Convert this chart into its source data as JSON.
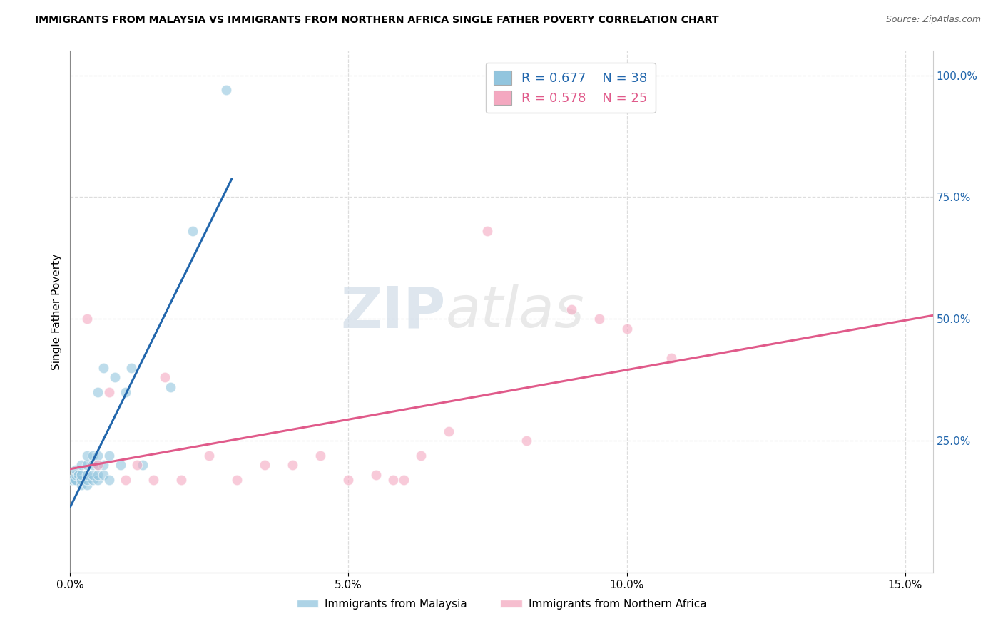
{
  "title": "IMMIGRANTS FROM MALAYSIA VS IMMIGRANTS FROM NORTHERN AFRICA SINGLE FATHER POVERTY CORRELATION CHART",
  "source": "Source: ZipAtlas.com",
  "ylabel": "Single Father Poverty",
  "legend_label_1": "Immigrants from Malaysia",
  "legend_label_2": "Immigrants from Northern Africa",
  "r1": 0.677,
  "n1": 38,
  "r2": 0.578,
  "n2": 25,
  "color1": "#92c5de",
  "color2": "#f4a8c0",
  "trendline1_color": "#2166ac",
  "trendline2_color": "#e05a8a",
  "xlim": [
    0.0,
    0.155
  ],
  "ylim": [
    -0.02,
    1.05
  ],
  "xticks": [
    0.0,
    0.05,
    0.1,
    0.15
  ],
  "xticklabels": [
    "0.0%",
    "5.0%",
    "10.0%",
    "15.0%"
  ],
  "yticks_right": [
    0.25,
    0.5,
    0.75,
    1.0
  ],
  "yticklabels_right": [
    "25.0%",
    "50.0%",
    "75.0%",
    "100.0%"
  ],
  "watermark_zip": "ZIP",
  "watermark_atlas": "atlas",
  "background_color": "#ffffff",
  "grid_color": "#dddddd",
  "scatter1_x": [
    0.0003,
    0.0005,
    0.0008,
    0.001,
    0.001,
    0.001,
    0.0015,
    0.002,
    0.002,
    0.002,
    0.002,
    0.003,
    0.003,
    0.003,
    0.003,
    0.003,
    0.004,
    0.004,
    0.004,
    0.004,
    0.005,
    0.005,
    0.005,
    0.005,
    0.005,
    0.006,
    0.006,
    0.006,
    0.007,
    0.007,
    0.008,
    0.009,
    0.01,
    0.011,
    0.013,
    0.018,
    0.022,
    0.028
  ],
  "scatter1_y": [
    0.17,
    0.17,
    0.17,
    0.17,
    0.18,
    0.19,
    0.18,
    0.16,
    0.17,
    0.18,
    0.2,
    0.16,
    0.17,
    0.18,
    0.2,
    0.22,
    0.17,
    0.18,
    0.2,
    0.22,
    0.17,
    0.18,
    0.2,
    0.22,
    0.35,
    0.18,
    0.2,
    0.4,
    0.17,
    0.22,
    0.38,
    0.2,
    0.35,
    0.4,
    0.2,
    0.36,
    0.68,
    0.97
  ],
  "scatter2_x": [
    0.003,
    0.005,
    0.007,
    0.01,
    0.012,
    0.015,
    0.017,
    0.02,
    0.025,
    0.03,
    0.035,
    0.04,
    0.045,
    0.05,
    0.055,
    0.058,
    0.06,
    0.063,
    0.068,
    0.075,
    0.082,
    0.09,
    0.095,
    0.1,
    0.108
  ],
  "scatter2_y": [
    0.5,
    0.2,
    0.35,
    0.17,
    0.2,
    0.17,
    0.38,
    0.17,
    0.22,
    0.17,
    0.2,
    0.2,
    0.22,
    0.17,
    0.18,
    0.17,
    0.17,
    0.22,
    0.27,
    0.68,
    0.25,
    0.52,
    0.5,
    0.48,
    0.42
  ],
  "trendline1_x": [
    0.0,
    0.029
  ],
  "trendline2_x": [
    0.0,
    0.155
  ]
}
